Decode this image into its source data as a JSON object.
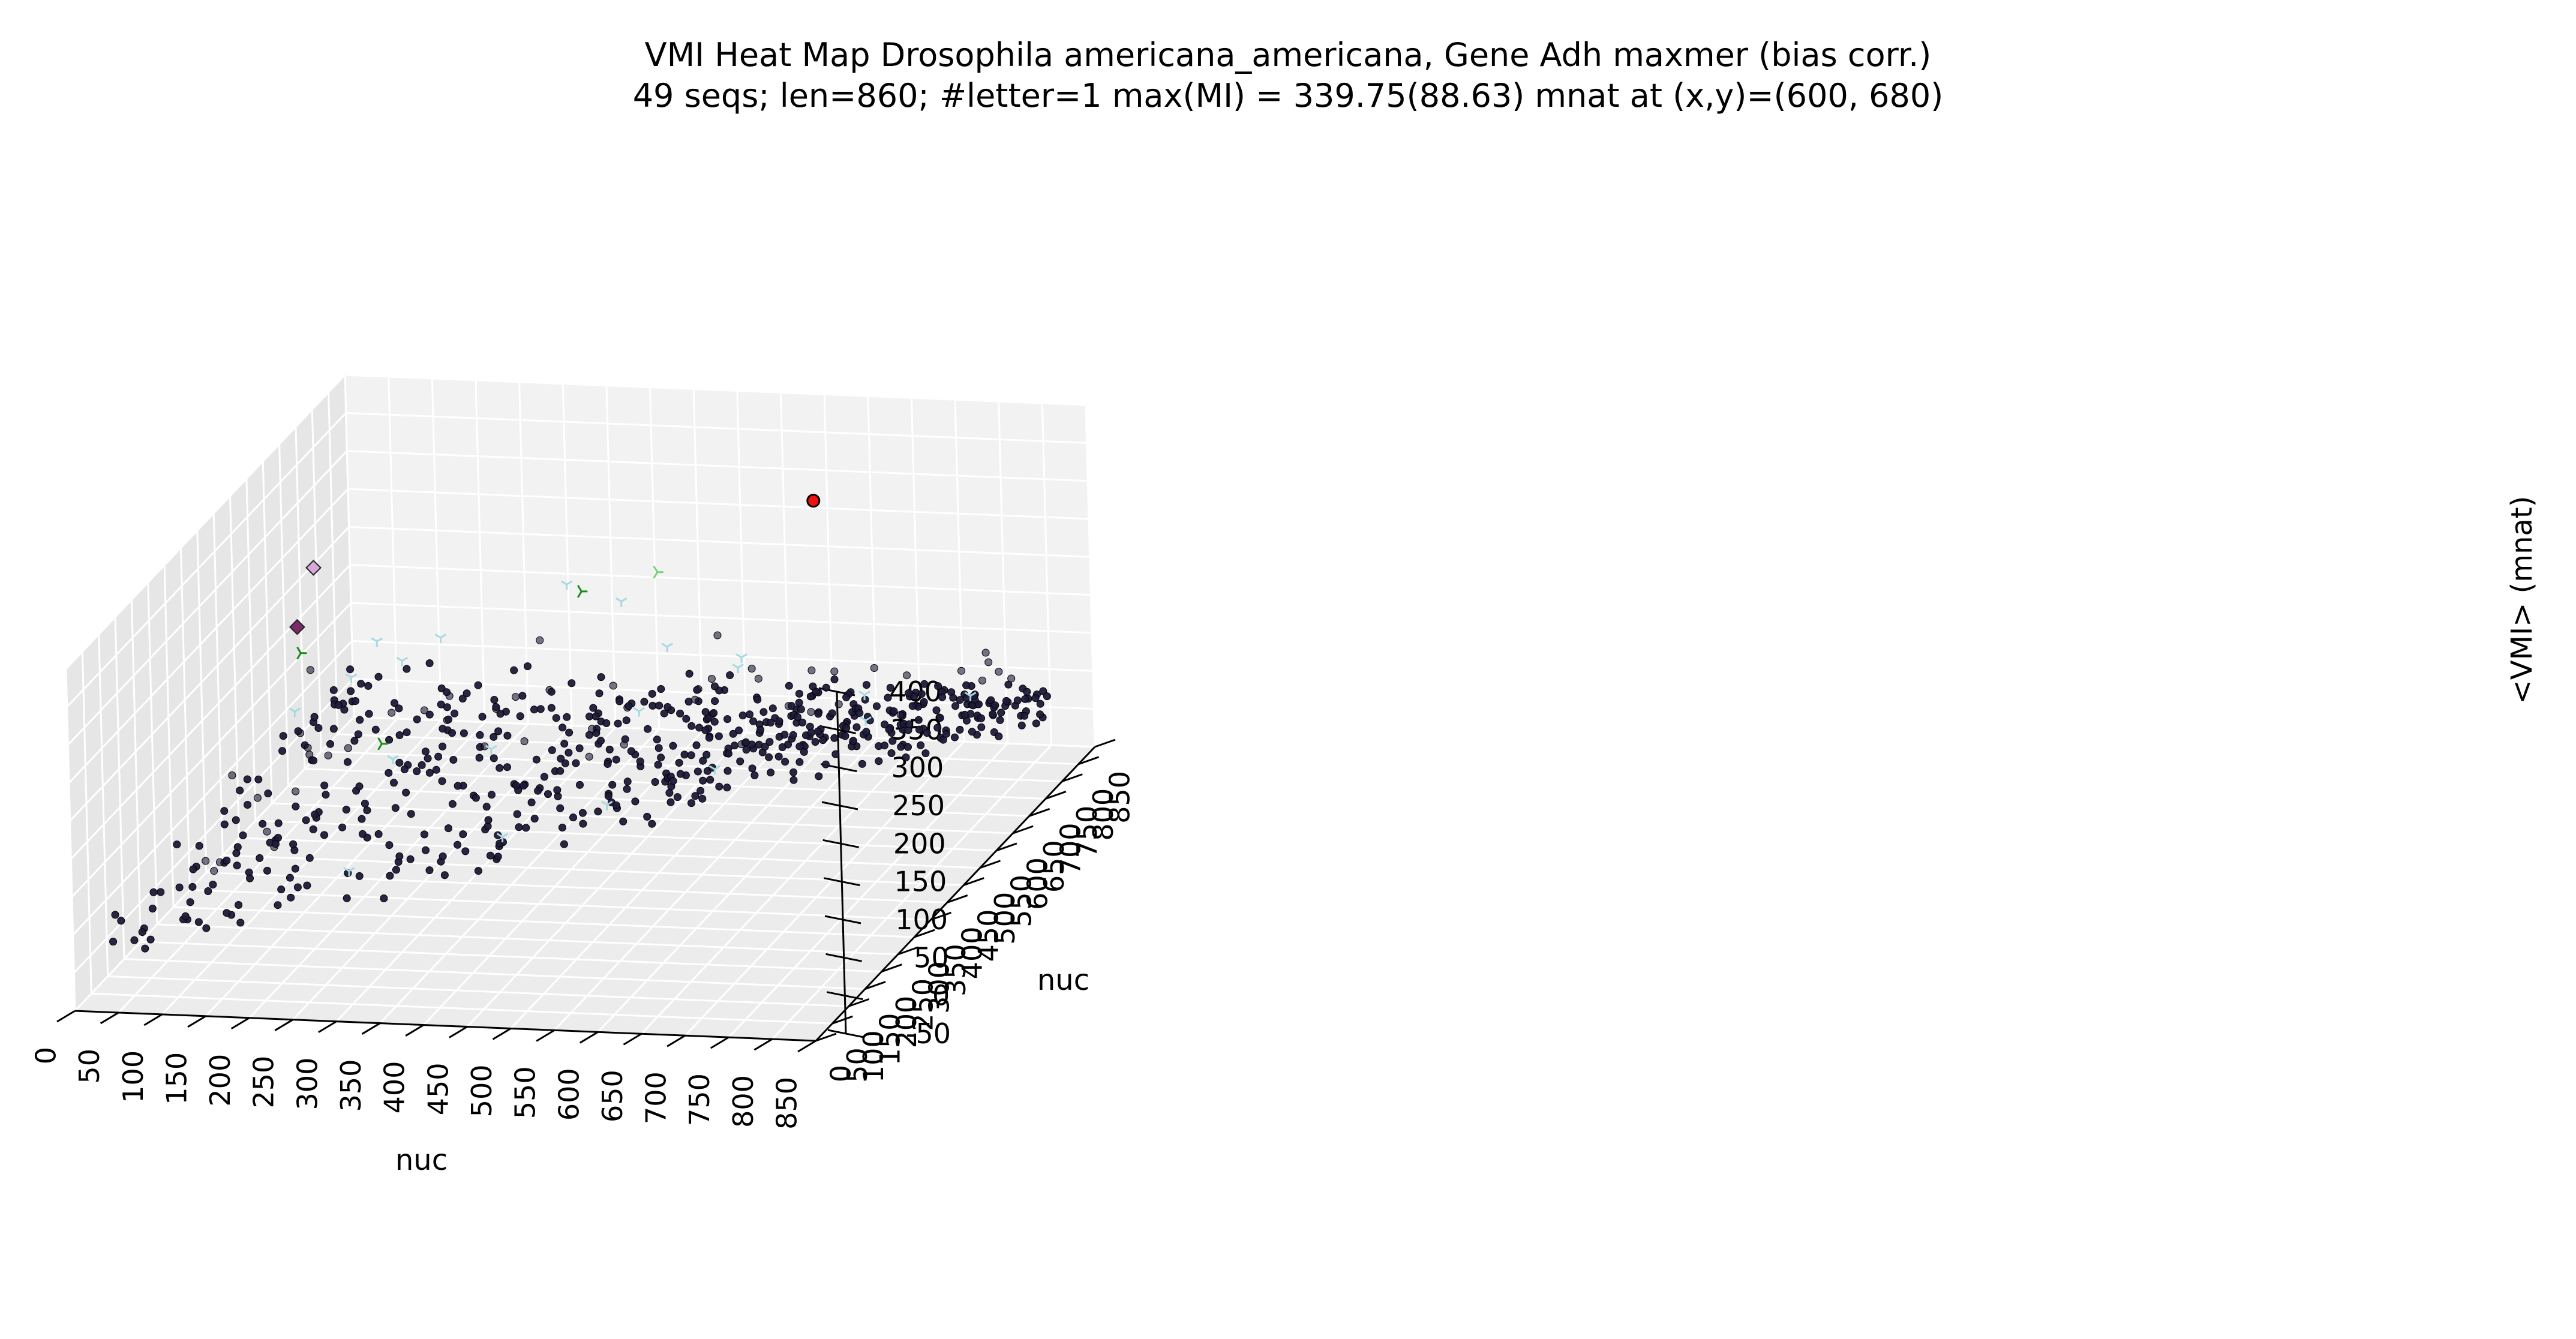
{
  "chart_data": {
    "type": "scatter",
    "projection": "3d",
    "title": "VMI Heat Map Drosophila americana_americana, Gene Adh maxmer (bias corr.)",
    "subtitle": "49 seqs; len=860; #letter=1 max(MI) = 339.75(88.63) mnat at (x,y)=(600, 680)",
    "xlabel": "nuc",
    "ylabel": "nuc",
    "zlabel": "<VMI> (mnat)",
    "x_ticks": [
      "0",
      "50",
      "100",
      "150",
      "200",
      "250",
      "300",
      "350",
      "400",
      "450",
      "500",
      "550",
      "600",
      "650",
      "700",
      "750",
      "800",
      "850"
    ],
    "y_ticks": [
      "0",
      "50",
      "100",
      "150",
      "200",
      "250",
      "300",
      "350",
      "400",
      "450",
      "500",
      "550",
      "600",
      "650",
      "700",
      "750",
      "800",
      "850"
    ],
    "z_ticks": [
      "-50",
      "0",
      "50",
      "100",
      "150",
      "200",
      "250",
      "300",
      "350",
      "400"
    ],
    "xlim": [
      0,
      850
    ],
    "ylim": [
      0,
      850
    ],
    "zlim": [
      -50,
      400
    ],
    "grid": true,
    "series": [
      {
        "marker": "circle",
        "color": "#1e1a3a",
        "points": []
      },
      {
        "marker": "tri_down",
        "color": "#a8d8e0",
        "points": [
          [
            60,
            520,
            110
          ],
          [
            95,
            600,
            120
          ],
          [
            110,
            640,
            150
          ],
          [
            150,
            610,
            140
          ],
          [
            160,
            700,
            130
          ],
          [
            260,
            820,
            150
          ],
          [
            330,
            800,
            140
          ],
          [
            420,
            700,
            130
          ],
          [
            505,
            700,
            120
          ],
          [
            520,
            650,
            130
          ],
          [
            440,
            560,
            110
          ],
          [
            210,
            420,
            100
          ],
          [
            300,
            480,
            90
          ],
          [
            680,
            610,
            120
          ],
          [
            700,
            560,
            110
          ],
          [
            790,
            640,
            110
          ],
          [
            560,
            470,
            80
          ],
          [
            230,
            230,
            40
          ],
          [
            380,
            300,
            60
          ],
          [
            470,
            380,
            70
          ]
        ]
      },
      {
        "marker": "tri_right",
        "color": "#1a8a1a",
        "points": [
          [
            30,
            620,
            140
          ],
          [
            190,
            440,
            110
          ],
          [
            300,
            760,
            170
          ]
        ]
      },
      {
        "marker": "tri_right",
        "color": "#7ad07a",
        "points": [
          [
            380,
            780,
            190
          ]
        ]
      },
      {
        "marker": "diamond",
        "color": "#7a2a6a",
        "points": [
          [
            15,
            650,
            160
          ]
        ]
      },
      {
        "marker": "diamond",
        "color": "#d8a8d8",
        "points": [
          [
            20,
            690,
            220
          ]
        ]
      },
      {
        "marker": "circle",
        "color": "#ee1111",
        "points": [
          [
            600,
            680,
            339.75
          ]
        ]
      }
    ],
    "max_point": {
      "x": 600,
      "y": 680,
      "z": 339.75
    }
  },
  "colors": {
    "pane_left": "#e6e6e6",
    "pane_back": "#f2f2f2",
    "pane_floor": "#ececec",
    "grid": "#ffffff",
    "axis": "#000000"
  }
}
